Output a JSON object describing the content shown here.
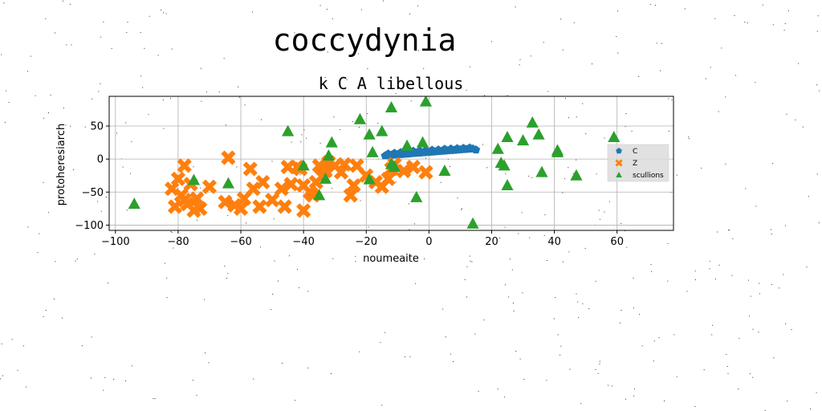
{
  "chart_data": {
    "type": "scatter",
    "suptitle": "coccydynia",
    "title": "k C A libellous",
    "xlabel": "noumeaite",
    "ylabel": "protoheresiarch",
    "xlim": [
      -102,
      78
    ],
    "ylim": [
      -108,
      95
    ],
    "xticks": [
      -100,
      -80,
      -60,
      -40,
      -20,
      0,
      20,
      40,
      60
    ],
    "yticks": [
      -100,
      -50,
      0,
      50
    ],
    "xtick_labels": [
      "−100",
      "−80",
      "−60",
      "−40",
      "−20",
      "0",
      "20",
      "40",
      "60"
    ],
    "ytick_labels": [
      "−100",
      "−50",
      "0",
      "50"
    ],
    "grid": true,
    "legend_position": "center-right",
    "series": [
      {
        "name": "C",
        "marker": "pentagon",
        "color": "#1f77b4",
        "x": [
          -14,
          -13,
          -12,
          -11,
          -10,
          -9,
          -8,
          -7,
          -6,
          -5,
          -4,
          -3,
          -2,
          -1,
          0,
          1,
          2,
          3,
          4,
          5,
          6,
          7,
          8,
          9,
          10,
          11,
          12,
          13,
          14,
          15,
          -13,
          -11,
          -9,
          -7,
          -5,
          -3,
          -1,
          1,
          3,
          5,
          7,
          9,
          11,
          13
        ],
        "y": [
          5,
          5.5,
          6,
          6.3,
          6.7,
          7,
          7.4,
          7.8,
          8.2,
          8.6,
          9,
          9.3,
          9.7,
          10,
          10.4,
          10.8,
          11.2,
          11.5,
          11.9,
          12.3,
          12.7,
          13,
          13.4,
          13.8,
          14.2,
          14.5,
          14.9,
          15.3,
          15.6,
          14,
          8,
          9,
          10,
          11,
          12,
          12.5,
          13,
          13.5,
          14,
          15,
          15.5,
          16,
          16.5,
          17
        ]
      },
      {
        "name": "Z",
        "marker": "x",
        "color": "#ff7f0e",
        "x": [
          -78,
          -80,
          -82,
          -76,
          -79,
          -81,
          -75,
          -73,
          -77,
          -70,
          -78,
          -74,
          -65,
          -64,
          -60,
          -57,
          -56,
          -54,
          -53,
          -50,
          -47,
          -46,
          -45,
          -44,
          -42,
          -41,
          -40,
          -40,
          -38,
          -37,
          -36,
          -35,
          -34,
          -33,
          -32,
          -30,
          -28,
          -27,
          -25,
          -24,
          -23,
          -20,
          -17,
          -15,
          -13,
          -12,
          -11,
          -8,
          -5,
          -1,
          -59,
          -62
        ],
        "y": [
          -10,
          -30,
          -45,
          -38,
          -55,
          -72,
          -78,
          -75,
          -68,
          -42,
          -62,
          -60,
          -65,
          2,
          -75,
          -15,
          -45,
          -72,
          -35,
          -62,
          -45,
          -72,
          -12,
          -38,
          -12,
          -15,
          -40,
          -78,
          -50,
          -55,
          -35,
          -10,
          -15,
          -18,
          -5,
          -10,
          -20,
          -8,
          -55,
          -40,
          -10,
          -25,
          -35,
          -42,
          -30,
          -15,
          -8,
          -18,
          -12,
          -20,
          -60,
          -70
        ]
      },
      {
        "name": "scullions",
        "marker": "triangle",
        "color": "#2ca02c",
        "x": [
          -94,
          -75,
          -64,
          -45,
          -40,
          -35,
          -33,
          -32,
          -31,
          -22,
          -19,
          -18,
          -15,
          -12,
          -11,
          -7,
          -4,
          -2,
          -1,
          -19,
          5,
          14,
          22,
          23,
          24,
          25,
          25,
          30,
          33,
          35,
          36,
          41,
          41,
          47,
          59,
          -12
        ],
        "y": [
          -68,
          -32,
          -37,
          42,
          -10,
          -55,
          -30,
          5,
          25,
          60,
          37,
          10,
          42,
          78,
          -12,
          20,
          -58,
          25,
          87,
          -31,
          -18,
          -98,
          15,
          -6,
          -10,
          -40,
          33,
          28,
          55,
          37,
          -20,
          10,
          13,
          -25,
          33,
          -8
        ]
      }
    ]
  }
}
